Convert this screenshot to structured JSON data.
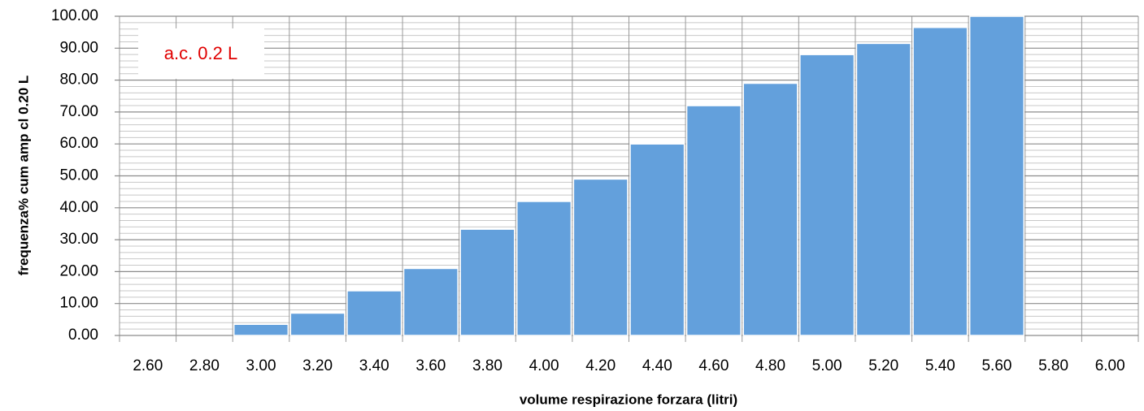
{
  "chart_data": {
    "type": "bar",
    "x_label": "volume respirazione forzara (litri)",
    "y_label": "frequenza% cum amp cl 0.20 L",
    "annotation": "a.c. 0.2 L",
    "categories": [
      "2.60",
      "2.80",
      "3.00",
      "3.20",
      "3.40",
      "3.60",
      "3.80",
      "4.00",
      "4.20",
      "4.40",
      "4.60",
      "4.80",
      "5.00",
      "5.20",
      "5.40",
      "5.60",
      "5.80",
      "6.00"
    ],
    "values": [
      0,
      0,
      3.5,
      7,
      14,
      21,
      33.3,
      42,
      49,
      60,
      72,
      79,
      88,
      91.5,
      96.5,
      100,
      0,
      0
    ],
    "color": "#63a0dc",
    "ylim": [
      0,
      100
    ],
    "yticks": [
      {
        "value": 0,
        "label": "0.00"
      },
      {
        "value": 10,
        "label": "10.00"
      },
      {
        "value": 20,
        "label": "20.00"
      },
      {
        "value": 30,
        "label": "30.00"
      },
      {
        "value": 40,
        "label": "40.00"
      },
      {
        "value": 50,
        "label": "50.00"
      },
      {
        "value": 60,
        "label": "60.00"
      },
      {
        "value": 70,
        "label": "70.00"
      },
      {
        "value": 80,
        "label": "80.00"
      },
      {
        "value": 90,
        "label": "90.00"
      },
      {
        "value": 100,
        "label": "100.00"
      }
    ],
    "grid": true,
    "minor_divisions": 5
  }
}
